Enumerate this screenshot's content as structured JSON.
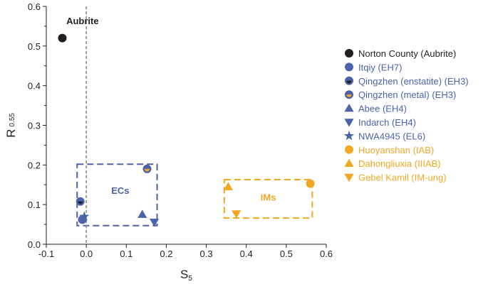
{
  "chart_data": {
    "type": "scatter",
    "xlabel_main": "S",
    "xlabel_sub": "5",
    "ylabel_main": "R",
    "ylabel_sub": "0.55",
    "xlim": [
      -0.1,
      0.6
    ],
    "ylim": [
      0.0,
      0.6
    ],
    "xticks": [
      "-0.1",
      "0.0",
      "0.1",
      "0.2",
      "0.3",
      "0.4",
      "0.5",
      "0.6"
    ],
    "yticks": [
      "0.0",
      "0.1",
      "0.2",
      "0.3",
      "0.4",
      "0.5",
      "0.6"
    ],
    "reference_line_x": 0.0,
    "colors": {
      "dark": "#231f20",
      "blue": "#4a63a9",
      "orange": "#f0a823"
    },
    "series": [
      {
        "name": "Norton County (Aubrite)",
        "marker": "circle",
        "color": "dark",
        "points": [
          [
            -0.06,
            0.52
          ]
        ]
      },
      {
        "name": "Itqiy (EH7)",
        "marker": "circle",
        "color": "blue",
        "points": [
          [
            -0.01,
            0.062
          ]
        ]
      },
      {
        "name": "Qingzhen (enstatite) (EH3)",
        "marker": "circle-dark-half",
        "color": "blue",
        "points": [
          [
            -0.015,
            0.108
          ]
        ]
      },
      {
        "name": "Qingzhen (metal) (EH3)",
        "marker": "circle-orange-half",
        "color": "blue",
        "points": [
          [
            0.152,
            0.19
          ]
        ]
      },
      {
        "name": "Abee (EH4)",
        "marker": "triangle-up",
        "color": "blue",
        "points": [
          [
            0.14,
            0.075
          ]
        ]
      },
      {
        "name": "Indarch (EH4)",
        "marker": "triangle-down",
        "color": "blue",
        "points": [
          [
            0.17,
            0.056
          ]
        ]
      },
      {
        "name": "NWA4945 (EL6)",
        "marker": "star",
        "color": "blue",
        "points": [
          [
            -0.005,
            0.07
          ]
        ]
      },
      {
        "name": "Huoyanshan (IAB)",
        "marker": "circle",
        "color": "orange",
        "points": [
          [
            0.56,
            0.153
          ]
        ]
      },
      {
        "name": "Dahongliuxia (IIIAB)",
        "marker": "triangle-up",
        "color": "orange",
        "points": [
          [
            0.355,
            0.145
          ]
        ]
      },
      {
        "name": "Gebel Kamil (IM-ung)",
        "marker": "triangle-down",
        "color": "orange",
        "points": [
          [
            0.375,
            0.077
          ]
        ]
      }
    ],
    "annotations": [
      {
        "text": "Aubrite",
        "x": -0.05,
        "y": 0.555,
        "color": "dark"
      },
      {
        "text": "ECs",
        "x": 0.085,
        "y": 0.127,
        "color": "blue"
      },
      {
        "text": "IMs",
        "x": 0.455,
        "y": 0.11,
        "color": "orange"
      }
    ],
    "group_boxes": [
      {
        "label": "ECs",
        "x": [
          -0.023,
          0.177
        ],
        "y": [
          0.047,
          0.202
        ],
        "color": "blue"
      },
      {
        "label": "IMs",
        "x": [
          0.345,
          0.565
        ],
        "y": [
          0.066,
          0.163
        ],
        "color": "orange"
      }
    ]
  }
}
